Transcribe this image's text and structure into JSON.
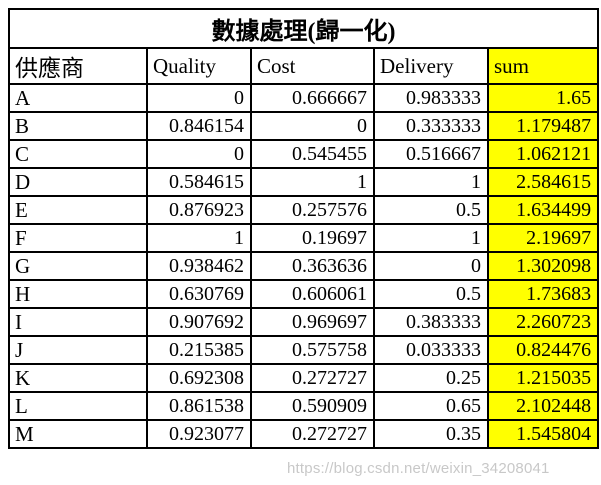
{
  "watermark": "https://blog.csdn.net/weixin_34208041",
  "colors": {
    "highlight": "#ffff00",
    "border": "#000000",
    "background": "#ffffff",
    "watermark_text": "#b9b9b9"
  },
  "chart_data": {
    "type": "table",
    "title": "數據處理(歸一化)",
    "columns": [
      "供應商",
      "Quality",
      "Cost",
      "Delivery",
      "sum"
    ],
    "highlight_column": "sum",
    "rows": [
      [
        "A",
        "0",
        "0.666667",
        "0.983333",
        "1.65"
      ],
      [
        "B",
        "0.846154",
        "0",
        "0.333333",
        "1.179487"
      ],
      [
        "C",
        "0",
        "0.545455",
        "0.516667",
        "1.062121"
      ],
      [
        "D",
        "0.584615",
        "1",
        "1",
        "2.584615"
      ],
      [
        "E",
        "0.876923",
        "0.257576",
        "0.5",
        "1.634499"
      ],
      [
        "F",
        "1",
        "0.19697",
        "1",
        "2.19697"
      ],
      [
        "G",
        "0.938462",
        "0.363636",
        "0",
        "1.302098"
      ],
      [
        "H",
        "0.630769",
        "0.606061",
        "0.5",
        "1.73683"
      ],
      [
        "I",
        "0.907692",
        "0.969697",
        "0.383333",
        "2.260723"
      ],
      [
        "J",
        "0.215385",
        "0.575758",
        "0.033333",
        "0.824476"
      ],
      [
        "K",
        "0.692308",
        "0.272727",
        "0.25",
        "1.215035"
      ],
      [
        "L",
        "0.861538",
        "0.590909",
        "0.65",
        "2.102448"
      ],
      [
        "M",
        "0.923077",
        "0.272727",
        "0.35",
        "1.545804"
      ]
    ]
  }
}
